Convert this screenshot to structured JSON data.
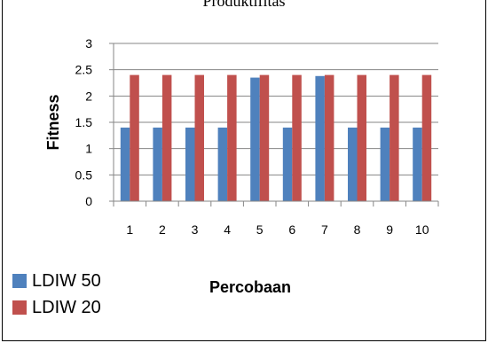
{
  "chart_data": {
    "type": "bar",
    "title": "Produktifitas",
    "xlabel": "Percobaan",
    "ylabel": "Fitness",
    "categories": [
      "1",
      "2",
      "3",
      "4",
      "5",
      "6",
      "7",
      "8",
      "9",
      "10"
    ],
    "series": [
      {
        "name": "LDIW 50",
        "color": "#4F81BD",
        "values": [
          1.4,
          1.4,
          1.4,
          1.4,
          2.35,
          1.4,
          2.38,
          1.4,
          1.4,
          1.4
        ]
      },
      {
        "name": "LDIW 20",
        "color": "#C0504D",
        "values": [
          2.4,
          2.4,
          2.4,
          2.4,
          2.4,
          2.4,
          2.4,
          2.4,
          2.4,
          2.4
        ]
      }
    ],
    "ylim": [
      0,
      3
    ],
    "yticks": [
      "0",
      "0.5",
      "1",
      "1.5",
      "2",
      "2.5",
      "3"
    ],
    "grid": true,
    "legend": "bottom-left",
    "gridline_color": "#868686"
  }
}
